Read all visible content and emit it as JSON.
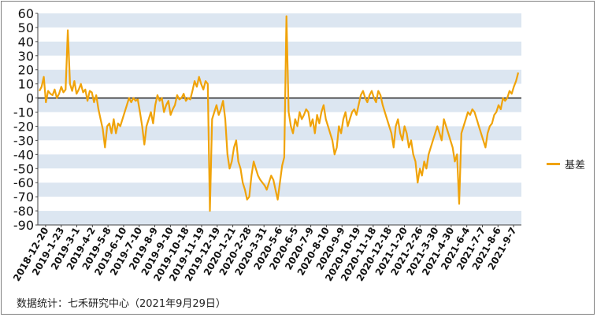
{
  "chart_data": {
    "type": "line",
    "title": "",
    "xlabel": "",
    "ylabel": "",
    "ylim": [
      -90,
      60
    ],
    "yticks": [
      60,
      50,
      40,
      30,
      20,
      10,
      0,
      -10,
      -20,
      -30,
      -40,
      -50,
      -60,
      -70,
      -80,
      -90
    ],
    "grid": "alternating horizontal bands",
    "legend_position": "right",
    "xtick_labels": [
      "2018-12-20",
      "2019-1-23",
      "2019-3-1",
      "2019-4-2",
      "2019-5-8",
      "2019-6-10",
      "2019-7-10",
      "2019-8-9",
      "2019-9-10",
      "2019-10-18",
      "2019-11-19",
      "2019-12-19",
      "2020-1-21",
      "2020-2-28",
      "2020-3-31",
      "2020-5-6",
      "2020-6-5",
      "2020-7-9",
      "2020-8-10",
      "2020-9-9",
      "2020-10-19",
      "2020-11-18",
      "2020-12-18",
      "2021-1-20",
      "2021-2-26",
      "2021-3-30",
      "2021-4-30",
      "2021-6-4",
      "2021-7-7",
      "2021-8-6",
      "2021-9-7"
    ],
    "series": [
      {
        "name": "基差",
        "color": "#f0a30a",
        "values": [
          5,
          8,
          15,
          -3,
          5,
          3,
          2,
          6,
          0,
          3,
          8,
          4,
          6,
          48,
          10,
          5,
          12,
          3,
          6,
          10,
          4,
          6,
          -2,
          5,
          4,
          -3,
          2,
          -8,
          -15,
          -22,
          -35,
          -20,
          -18,
          -25,
          -15,
          -25,
          -18,
          -20,
          -15,
          -10,
          -5,
          0,
          -3,
          0,
          -2,
          -1,
          -10,
          -20,
          -33,
          -20,
          -15,
          -10,
          -18,
          -5,
          2,
          -2,
          0,
          -10,
          -5,
          -2,
          -12,
          -8,
          -5,
          2,
          -1,
          0,
          3,
          -2,
          0,
          -1,
          5,
          12,
          8,
          15,
          10,
          6,
          12,
          10,
          -80,
          -15,
          -10,
          -5,
          -12,
          -8,
          -2,
          -15,
          -40,
          -50,
          -45,
          -35,
          -30,
          -45,
          -50,
          -60,
          -65,
          -72,
          -70,
          -55,
          -45,
          -50,
          -55,
          -58,
          -60,
          -62,
          -65,
          -60,
          -55,
          -58,
          -65,
          -72,
          -60,
          -48,
          -42,
          58,
          -10,
          -20,
          -25,
          -15,
          -20,
          -10,
          -15,
          -12,
          -8,
          -10,
          -20,
          -15,
          -25,
          -12,
          -18,
          -10,
          -5,
          -15,
          -20,
          -25,
          -30,
          -40,
          -35,
          -20,
          -25,
          -15,
          -10,
          -20,
          -15,
          -10,
          -8,
          -12,
          -5,
          2,
          5,
          0,
          -3,
          2,
          5,
          0,
          -3,
          5,
          2,
          -5,
          -10,
          -15,
          -20,
          -25,
          -35,
          -20,
          -15,
          -25,
          -30,
          -20,
          -25,
          -35,
          -30,
          -40,
          -45,
          -60,
          -50,
          -55,
          -45,
          -50,
          -40,
          -35,
          -30,
          -25,
          -20,
          -25,
          -30,
          -15,
          -20,
          -25,
          -30,
          -35,
          -45,
          -40,
          -75,
          -25,
          -20,
          -15,
          -10,
          -12,
          -8,
          -10,
          -15,
          -20,
          -25,
          -30,
          -35,
          -25,
          -20,
          -18,
          -12,
          -10,
          -5,
          -8,
          0,
          -2,
          0,
          5,
          3,
          8,
          12,
          18
        ]
      }
    ]
  },
  "legend": {
    "label": "基差"
  },
  "source": "数据统计：七禾研究中心（2021年9月29日）"
}
